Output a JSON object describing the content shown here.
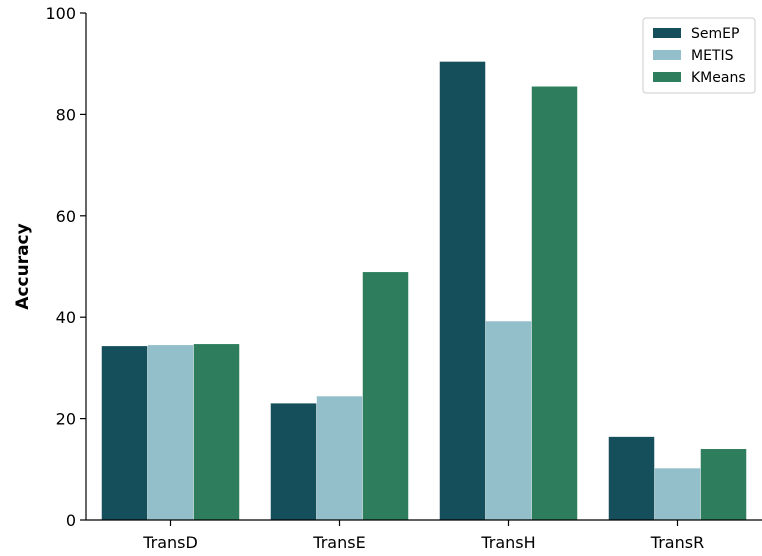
{
  "chart_data": {
    "type": "bar",
    "title": "",
    "xlabel": "",
    "ylabel": "Accuracy",
    "ylim": [
      0,
      100
    ],
    "yticks": [
      0,
      20,
      40,
      60,
      80,
      100
    ],
    "grid": false,
    "legend_position": "top-right",
    "categories": [
      "TransD",
      "TransE",
      "TransH",
      "TransR"
    ],
    "series": [
      {
        "name": "SemEP",
        "color": "#154f5b",
        "values": [
          34.3,
          23.0,
          90.4,
          16.4
        ]
      },
      {
        "name": "METIS",
        "color": "#93bfcb",
        "values": [
          34.5,
          24.4,
          39.2,
          10.2
        ]
      },
      {
        "name": "KMeans",
        "color": "#2e7e5e",
        "values": [
          34.7,
          48.9,
          85.5,
          14.0
        ]
      }
    ]
  }
}
